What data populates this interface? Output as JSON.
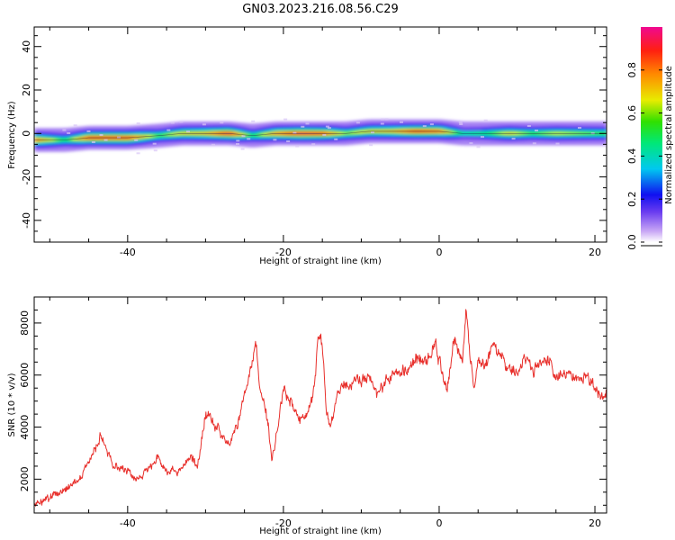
{
  "figure_title": "GN03.2023.216.08.56.C29",
  "chart_data": [
    {
      "type": "heatmap",
      "title": "",
      "xlabel": "Height of straight line (km)",
      "ylabel": "Frequency (Hz)",
      "xlim": [
        -52,
        21.5
      ],
      "ylim": [
        -50,
        49
      ],
      "xticks": [
        -40,
        -20,
        0,
        20
      ],
      "yticks": [
        40,
        20,
        0,
        -20,
        -40
      ],
      "grid": false,
      "colorbar": {
        "label": "Normalized spectral amplitude",
        "range": [
          0,
          1
        ],
        "ticks": [
          0.0,
          0.2,
          0.4,
          0.6,
          0.8
        ]
      },
      "ridge": {
        "x": [
          -52,
          -48,
          -45,
          -40,
          -36,
          -33,
          -30,
          -27,
          -24,
          -21,
          -18,
          -15,
          -12,
          -9,
          -6,
          -3,
          0,
          3,
          6,
          9,
          12,
          15,
          18,
          21.5
        ],
        "frequency": [
          -3,
          -3,
          -2,
          -2,
          -1,
          0,
          0,
          0,
          -1,
          0,
          0,
          0,
          0,
          1,
          1,
          1,
          1,
          0,
          0,
          0,
          0,
          0,
          0,
          0
        ],
        "amplitude": [
          0.85,
          0.5,
          0.9,
          0.9,
          0.55,
          0.7,
          0.75,
          0.95,
          0.5,
          0.8,
          0.95,
          0.9,
          0.6,
          0.7,
          0.75,
          0.9,
          0.85,
          0.45,
          0.5,
          0.7,
          0.55,
          0.65,
          0.6,
          0.55
        ]
      }
    },
    {
      "type": "line",
      "title": "",
      "xlabel": "Height of straight line (km)",
      "ylabel": "SNR (10 * v/v)",
      "xlim": [
        -52,
        21.5
      ],
      "ylim": [
        700,
        9000
      ],
      "xticks": [
        -40,
        -20,
        0,
        20
      ],
      "yticks": [
        2000,
        4000,
        6000,
        8000
      ],
      "grid": false,
      "color": "#e8302c",
      "x": [
        -52,
        -50,
        -48,
        -46,
        -45,
        -44,
        -43.5,
        -42,
        -40,
        -39,
        -37,
        -36,
        -35,
        -34,
        -33,
        -32,
        -31,
        -30,
        -29,
        -28,
        -27,
        -26,
        -25,
        -24,
        -23.5,
        -23,
        -22,
        -21.5,
        -21,
        -20,
        -19,
        -18,
        -17,
        -16,
        -15.5,
        -15,
        -14.5,
        -14,
        -13,
        -12,
        -10,
        -9,
        -8,
        -6,
        -4,
        -3,
        -2,
        -1,
        -0.5,
        0,
        1,
        1.5,
        2,
        3,
        3.5,
        4,
        4.5,
        5,
        6,
        7,
        8,
        9,
        10,
        11,
        12,
        13,
        14,
        15,
        16,
        17,
        18,
        19,
        20,
        21,
        21.5
      ],
      "values": [
        1000,
        1300,
        1600,
        2100,
        2800,
        3300,
        3700,
        2600,
        2300,
        2000,
        2500,
        2800,
        2300,
        2300,
        2400,
        2900,
        2500,
        4500,
        4200,
        3800,
        3300,
        4000,
        5200,
        6500,
        7100,
        5500,
        4300,
        2700,
        3500,
        5500,
        5000,
        4200,
        4400,
        5600,
        7600,
        7300,
        4500,
        4000,
        5300,
        5700,
        5800,
        6000,
        5300,
        6000,
        6200,
        6600,
        6500,
        6800,
        7300,
        6600,
        5400,
        6600,
        7400,
        6400,
        8600,
        6700,
        5400,
        6700,
        6400,
        7300,
        6600,
        6300,
        6000,
        6600,
        6200,
        6400,
        6600,
        5900,
        6100,
        6000,
        5900,
        6000,
        5500,
        5200,
        5300
      ]
    }
  ]
}
